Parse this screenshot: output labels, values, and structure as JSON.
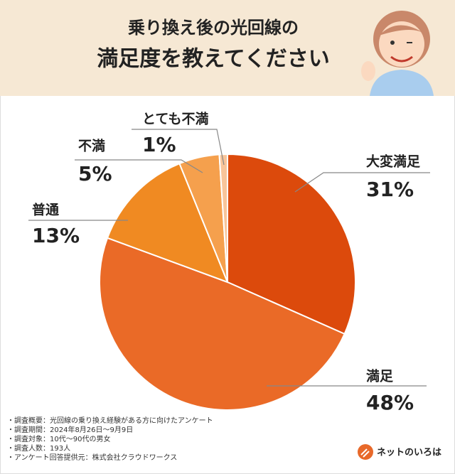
{
  "chart_data": {
    "type": "pie",
    "title": [
      "乗り換え後の光回線の",
      "満足度を教えてください"
    ],
    "categories": [
      "大変満足",
      "満足",
      "普通",
      "不満",
      "とても不満"
    ],
    "values": [
      31,
      48,
      13,
      5,
      1
    ],
    "value_labels": [
      "31%",
      "48%",
      "13%",
      "5%",
      "1%"
    ],
    "colors": [
      "#dc4a0c",
      "#ea6a27",
      "#f08a22",
      "#f5a04d",
      "#f8c59a"
    ],
    "notes": [
      "・調査概要：光回線の乗り換え経験がある方に向けたアンケート",
      "・調査期間：2024年8月26日〜9月9日",
      "・調査対象：10代〜90代の男女",
      "・調査人数：193人",
      "・アンケート回答提供元：株式会社クラウドワークス"
    ],
    "logo": "ネットのいろは"
  }
}
